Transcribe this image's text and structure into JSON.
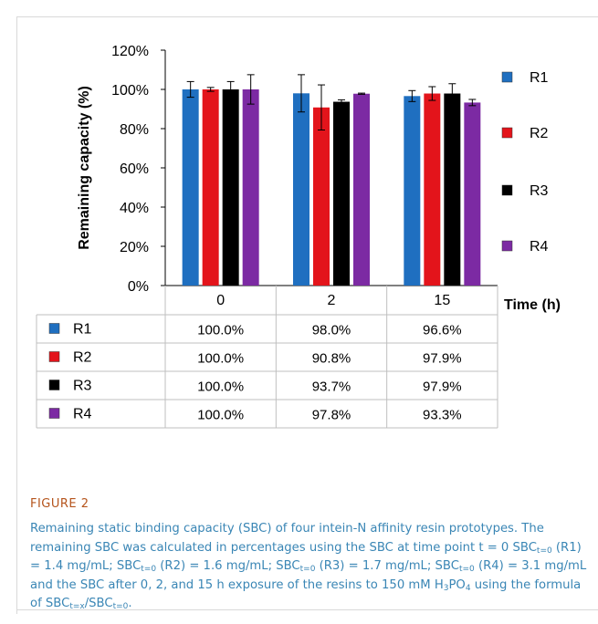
{
  "chart_data": {
    "type": "bar",
    "categories": [
      "0",
      "2",
      "15"
    ],
    "series": [
      {
        "name": "R1",
        "color": "#1f6fc0",
        "values": [
          100.0,
          98.0,
          96.6
        ],
        "errors": [
          4.0,
          9.5,
          2.8
        ]
      },
      {
        "name": "R2",
        "color": "#e3141b",
        "values": [
          100.0,
          90.8,
          97.9
        ],
        "errors": [
          1.0,
          11.5,
          3.5
        ]
      },
      {
        "name": "R3",
        "color": "#000000",
        "values": [
          100.0,
          93.7,
          97.9
        ],
        "errors": [
          4.0,
          1.0,
          5.0
        ]
      },
      {
        "name": "R4",
        "color": "#7c2aa3",
        "values": [
          100.0,
          97.8,
          93.3
        ],
        "errors": [
          7.5,
          0.3,
          1.6
        ]
      }
    ],
    "ylabel": "Remaining capacity (%)",
    "xlabel": "Time (h)",
    "ylim": [
      0,
      120
    ],
    "yticks": [
      "0%",
      "20%",
      "40%",
      "60%",
      "80%",
      "100%",
      "120%"
    ],
    "grid": false,
    "legend_position": "right",
    "table": {
      "rows": [
        {
          "label": "R1",
          "cells": [
            "100.0%",
            "98.0%",
            "96.6%"
          ]
        },
        {
          "label": "R2",
          "cells": [
            "100.0%",
            "90.8%",
            "97.9%"
          ]
        },
        {
          "label": "R3",
          "cells": [
            "100.0%",
            "93.7%",
            "97.9%"
          ]
        },
        {
          "label": "R4",
          "cells": [
            "100.0%",
            "97.8%",
            "93.3%"
          ]
        }
      ]
    }
  },
  "caption": {
    "label": "FIGURE 2",
    "text_parts": [
      [
        "t",
        "Remaining static binding capacity (SBC) of four intein-N affinity resin prototypes. The remaining SBC was calculated in percentages using the SBC at time point t = 0 SBC"
      ],
      [
        "s",
        "t=0"
      ],
      [
        "t",
        " (R1) = 1.4 mg/mL; SBC"
      ],
      [
        "s",
        "t=0"
      ],
      [
        "t",
        " (R2) = 1.6 mg/mL; SBC"
      ],
      [
        "s",
        "t=0"
      ],
      [
        "t",
        " (R3) = 1.7 mg/mL; SBC"
      ],
      [
        "s",
        "t=0"
      ],
      [
        "t",
        " (R4) = 3.1 mg/mL and the SBC after 0, 2, and 15 h exposure of the resins to 150 mM H"
      ],
      [
        "s",
        "3"
      ],
      [
        "t",
        "PO"
      ],
      [
        "s",
        "4"
      ],
      [
        "t",
        " using the formula of SBC"
      ],
      [
        "s",
        "t=x"
      ],
      [
        "t",
        "/SBC"
      ],
      [
        "s",
        "t=0"
      ],
      [
        "t",
        "."
      ]
    ]
  }
}
